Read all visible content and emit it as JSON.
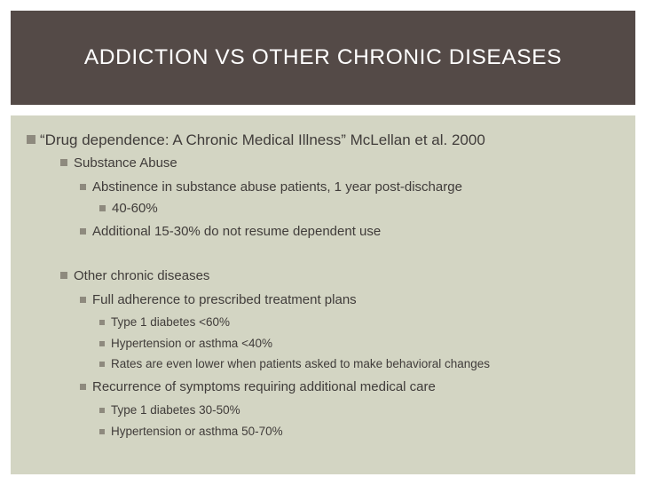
{
  "slide": {
    "title": "ADDICTION VS OTHER CHRONIC DISEASES",
    "bullets": [
      "“Drug dependence: A Chronic Medical Illness” McLellan et al. 2000",
      "Substance Abuse",
      "Abstinence in substance abuse patients, 1 year post-discharge",
      "40-60%",
      "Additional 15-30% do not resume dependent use",
      "Other chronic diseases",
      "Full adherence to prescribed treatment plans",
      "Type 1 diabetes <60%",
      "Hypertension or asthma <40%",
      "Rates are even lower when patients asked to make behavioral changes",
      "Recurrence of symptoms requiring additional medical care",
      "Type 1 diabetes 30-50%",
      "Hypertension or asthma 50-70%"
    ]
  },
  "colors": {
    "title_background": "#544a47",
    "content_background": "#d3d5c3",
    "bullet_marker": "#8e8a7e",
    "text": "#403c3a"
  }
}
